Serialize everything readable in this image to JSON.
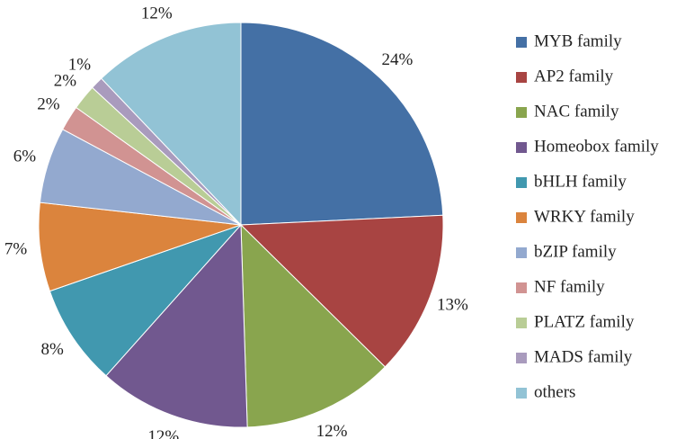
{
  "chart_data": {
    "type": "pie",
    "categories": [
      "MYB family",
      "AP2 family",
      "NAC family",
      "Homeobox family",
      "bHLH family",
      "WRKY family",
      "bZIP family",
      "NF family",
      "PLATZ family",
      "MADS family",
      "others"
    ],
    "values": [
      24,
      13,
      12,
      12,
      8,
      7,
      6,
      2,
      2,
      1,
      12
    ],
    "value_labels": [
      "24%",
      "13%",
      "12%",
      "12%",
      "8%",
      "7%",
      "6%",
      "2%",
      "2%",
      "1%",
      "12%"
    ],
    "colors": [
      "#4470a5",
      "#a84442",
      "#89a54e",
      "#71588f",
      "#4198af",
      "#db843d",
      "#93a9cf",
      "#d19392",
      "#b9cd96",
      "#a99bbd",
      "#92c3d5"
    ],
    "legend": "right"
  }
}
